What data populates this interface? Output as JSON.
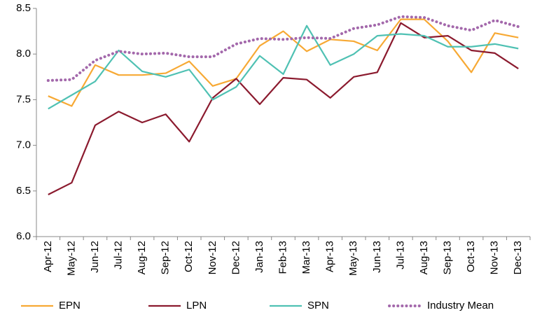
{
  "chart_data": {
    "type": "line",
    "categories": [
      "Apr-12",
      "May-12",
      "Jun-12",
      "Jul-12",
      "Aug-12",
      "Sep-12",
      "Oct-12",
      "Nov-12",
      "Dec-12",
      "Jan-13",
      "Feb-13",
      "Mar-13",
      "Apr-13",
      "May-13",
      "Jun-13",
      "Jul-13",
      "Aug-13",
      "Sep-13",
      "Oct-13",
      "Nov-13",
      "Dec-13"
    ],
    "series": [
      {
        "name": "EPN",
        "color": "#f7a934",
        "style": "solid",
        "values": [
          7.54,
          7.43,
          7.88,
          7.77,
          7.77,
          7.79,
          7.92,
          7.65,
          7.73,
          8.09,
          8.25,
          8.03,
          8.16,
          8.14,
          8.04,
          8.38,
          8.38,
          8.14,
          7.8,
          8.23,
          8.18
        ]
      },
      {
        "name": "LPN",
        "color": "#8b1a2e",
        "style": "solid",
        "values": [
          6.46,
          6.59,
          7.22,
          7.37,
          7.25,
          7.34,
          7.04,
          7.52,
          7.73,
          7.45,
          7.74,
          7.72,
          7.52,
          7.75,
          7.8,
          8.34,
          8.18,
          8.2,
          8.04,
          8.01,
          7.84
        ]
      },
      {
        "name": "SPN",
        "color": "#4fc1b3",
        "style": "solid",
        "values": [
          7.4,
          7.55,
          7.7,
          8.04,
          7.81,
          7.75,
          7.83,
          7.5,
          7.64,
          7.98,
          7.78,
          8.31,
          7.88,
          8.0,
          8.2,
          8.22,
          8.2,
          8.08,
          8.08,
          8.11,
          8.06
        ]
      },
      {
        "name": "Industry Mean",
        "color": "#a368ab",
        "style": "dotted",
        "values": [
          7.71,
          7.72,
          7.93,
          8.03,
          8.0,
          8.01,
          7.97,
          7.97,
          8.11,
          8.17,
          8.16,
          8.18,
          8.17,
          8.28,
          8.32,
          8.41,
          8.4,
          8.31,
          8.26,
          8.37,
          8.3
        ]
      }
    ],
    "ylim": [
      6.0,
      8.5
    ],
    "yticks": [
      {
        "value": 6.0,
        "label": "6.0"
      },
      6.5,
      {
        "value": 7.0,
        "label": "7.0"
      },
      7.5,
      {
        "value": 8.0,
        "label": "8.0"
      },
      8.5
    ],
    "grid": false,
    "legend": "bottom"
  }
}
